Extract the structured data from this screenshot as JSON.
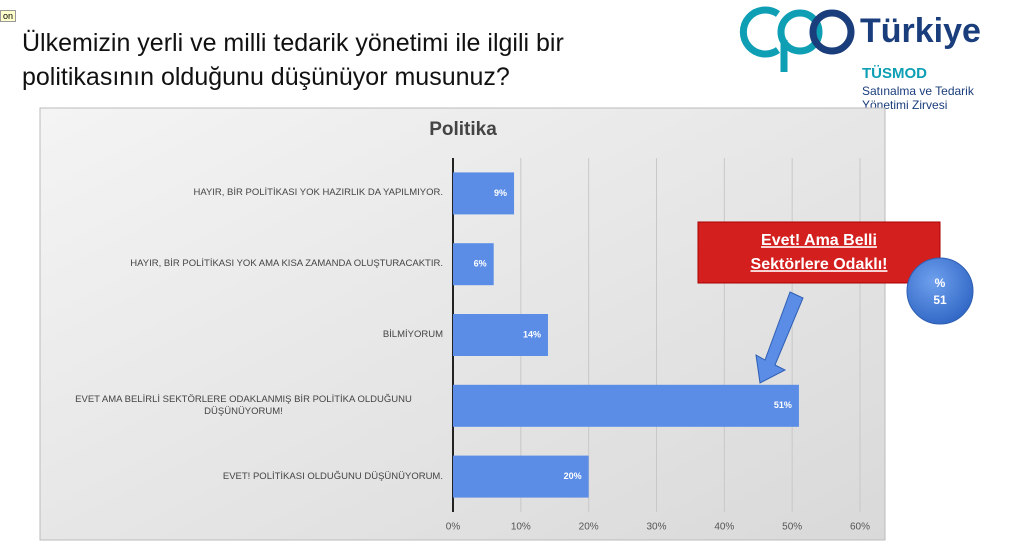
{
  "corner_tag": "on",
  "slide": {
    "title_lines": [
      "Ülkemizin yerli ve milli tedarik yönetimi ile ilgili bir",
      "politikasının olduğunu düşünüyor musunuz?"
    ]
  },
  "logo": {
    "brand": "Türkiye",
    "org": "TÜSMOD",
    "subtitle_lines": [
      "Satınalma ve Tedarik",
      "Yönetimi Zirvesi"
    ]
  },
  "callout": {
    "lines": [
      "Evet! Ama Belli",
      "Sektörlere Odaklı!"
    ]
  },
  "badge": {
    "symbol": "%",
    "number": "51"
  },
  "chart_data": {
    "type": "hbar",
    "title": "Politika",
    "categories": [
      "HAYIR, BİR POLİTİKASI YOK HAZIRLIK DA YAPILMIYOR.",
      "HAYIR, BİR POLİTİKASI YOK AMA KISA ZAMANDA OLUŞTURACAKTIR.",
      "BİLMİYORUM",
      "EVET AMA BELİRLİ SEKTÖRLERE ODAKLANMIŞ BİR POLİTİKA OLDUĞUNU DÜŞÜNÜYORUM!",
      "EVET! POLİTİKASI OLDUĞUNU DÜŞÜNÜYORUM."
    ],
    "values": [
      9,
      6,
      14,
      51,
      20
    ],
    "value_labels": [
      "9%",
      "6%",
      "14%",
      "51%",
      "20%"
    ],
    "color": "#5b8de6",
    "xlim": [
      0,
      60
    ],
    "xticks": [
      {
        "value": 0,
        "label": "0%"
      },
      {
        "value": 10,
        "label": "10%"
      },
      {
        "value": 20,
        "label": "20%"
      },
      {
        "value": 30,
        "label": "30%"
      },
      {
        "value": 40,
        "label": "40%"
      },
      {
        "value": 50,
        "label": "50%"
      },
      {
        "value": 60,
        "label": "60%"
      }
    ],
    "grid": true
  }
}
